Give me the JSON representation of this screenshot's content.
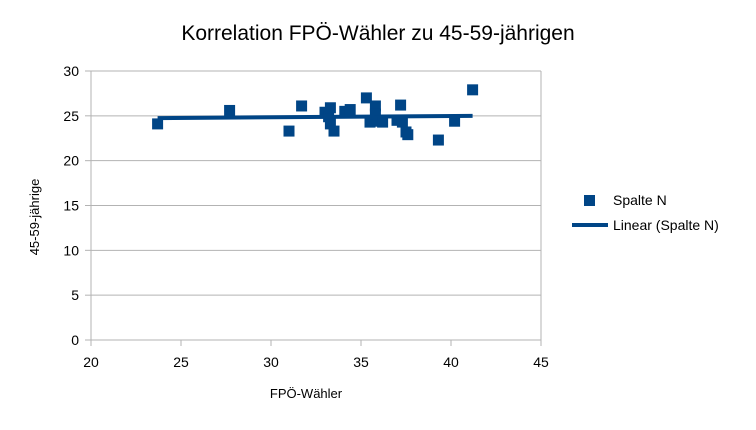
{
  "chart_data": {
    "type": "scatter",
    "title": "Korrelation FPÖ-Wähler zu 45-59-jährigen",
    "xlabel": "FPÖ-Wähler",
    "ylabel": "45-59-jährige",
    "xlim": [
      20,
      45
    ],
    "ylim": [
      0,
      30
    ],
    "xticks": [
      20,
      25,
      30,
      35,
      40,
      45
    ],
    "yticks": [
      0,
      5,
      10,
      15,
      20,
      25,
      30
    ],
    "grid": "horizontal",
    "legend_position": "right",
    "series": [
      {
        "name": "Spalte N",
        "kind": "scatter",
        "marker": "square",
        "color": "#004586",
        "points": [
          {
            "x": 23.7,
            "y": 24.1
          },
          {
            "x": 27.7,
            "y": 25.6
          },
          {
            "x": 31.0,
            "y": 23.3
          },
          {
            "x": 31.7,
            "y": 26.1
          },
          {
            "x": 33.0,
            "y": 25.4
          },
          {
            "x": 33.2,
            "y": 24.9
          },
          {
            "x": 33.3,
            "y": 25.9
          },
          {
            "x": 33.3,
            "y": 24.1
          },
          {
            "x": 33.5,
            "y": 23.3
          },
          {
            "x": 34.1,
            "y": 25.5
          },
          {
            "x": 34.4,
            "y": 25.7
          },
          {
            "x": 35.3,
            "y": 27.0
          },
          {
            "x": 35.5,
            "y": 24.3
          },
          {
            "x": 35.8,
            "y": 26.1
          },
          {
            "x": 35.8,
            "y": 25.2
          },
          {
            "x": 36.0,
            "y": 24.4
          },
          {
            "x": 36.2,
            "y": 24.3
          },
          {
            "x": 37.0,
            "y": 24.5
          },
          {
            "x": 37.2,
            "y": 26.2
          },
          {
            "x": 37.3,
            "y": 24.3
          },
          {
            "x": 37.5,
            "y": 23.2
          },
          {
            "x": 37.6,
            "y": 22.9
          },
          {
            "x": 39.3,
            "y": 22.3
          },
          {
            "x": 40.2,
            "y": 24.4
          },
          {
            "x": 41.2,
            "y": 27.9
          }
        ]
      },
      {
        "name": "Linear (Spalte N)",
        "kind": "trendline",
        "color": "#004586",
        "points": [
          {
            "x": 23.7,
            "y": 24.75
          },
          {
            "x": 41.2,
            "y": 25.0
          }
        ]
      }
    ]
  }
}
